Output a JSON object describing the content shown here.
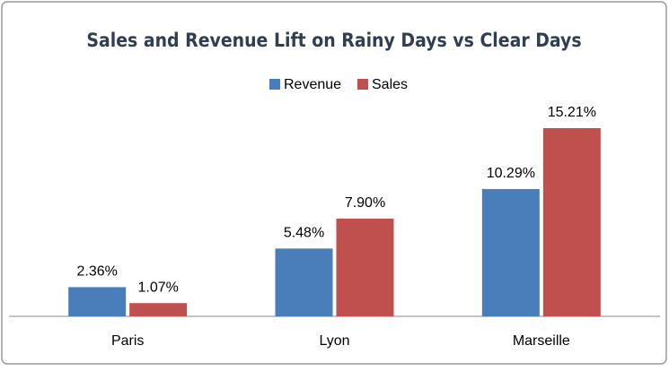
{
  "chart_data": {
    "type": "bar",
    "title": "Sales and Revenue Lift on Rainy Days vs Clear Days",
    "categories": [
      "Paris",
      "Lyon",
      "Marseille"
    ],
    "series": [
      {
        "name": "Revenue",
        "color": "#4a7ebb",
        "values": [
          2.36,
          5.48,
          10.29
        ],
        "value_labels": [
          "2.36%",
          "5.48%",
          "10.29%"
        ]
      },
      {
        "name": "Sales",
        "color": "#c0504d",
        "values": [
          1.07,
          7.9,
          15.21
        ],
        "value_labels": [
          "1.07%",
          "7.90%",
          "15.21%"
        ]
      }
    ],
    "legend": "top"
  }
}
